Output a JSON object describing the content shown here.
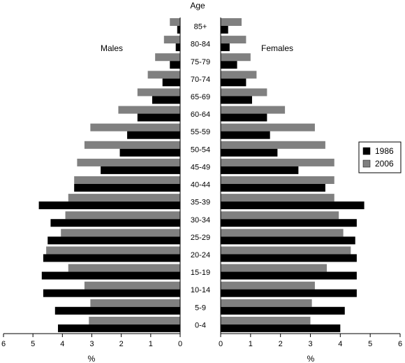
{
  "chart_data": {
    "type": "bar",
    "orientation": "horizontal",
    "layout": "population-pyramid",
    "title": "Age",
    "categories": [
      "85+",
      "80-84",
      "75-79",
      "70-74",
      "65-69",
      "60-64",
      "55-59",
      "50-54",
      "45-49",
      "40-44",
      "35-39",
      "30-34",
      "25-29",
      "20-24",
      "15-19",
      "10-14",
      "5-9",
      "0-4"
    ],
    "panels": {
      "left": {
        "label": "Males",
        "xlabel": "%",
        "xlim": [
          0,
          6
        ],
        "ticks": [
          6,
          5,
          4,
          3,
          2,
          1,
          0
        ]
      },
      "right": {
        "label": "Females",
        "xlabel": "%",
        "xlim": [
          0,
          6
        ],
        "ticks": [
          0,
          1,
          2,
          3,
          4,
          5,
          6
        ]
      }
    },
    "legend": {
      "position": "right",
      "entries": [
        "1986",
        "2006"
      ]
    },
    "series": [
      {
        "name": "1986",
        "color": "#000000",
        "males": [
          0.1,
          0.15,
          0.35,
          0.6,
          0.95,
          1.45,
          1.8,
          2.05,
          2.7,
          3.6,
          4.8,
          4.4,
          4.5,
          4.65,
          4.7,
          4.65,
          4.25,
          4.15
        ],
        "females": [
          0.25,
          0.3,
          0.55,
          0.85,
          1.05,
          1.55,
          1.65,
          1.9,
          2.6,
          3.5,
          4.8,
          4.55,
          4.5,
          4.55,
          4.55,
          4.55,
          4.15,
          4.0
        ]
      },
      {
        "name": "2006",
        "color": "#808080",
        "males": [
          0.35,
          0.55,
          0.85,
          1.1,
          1.45,
          2.1,
          3.05,
          3.25,
          3.5,
          3.6,
          3.8,
          3.9,
          4.05,
          4.55,
          3.8,
          3.25,
          3.05,
          3.1
        ],
        "females": [
          0.7,
          0.85,
          1.0,
          1.2,
          1.55,
          2.15,
          3.15,
          3.5,
          3.8,
          3.8,
          3.8,
          3.95,
          4.1,
          4.35,
          3.55,
          3.15,
          3.05,
          3.0
        ]
      }
    ]
  }
}
